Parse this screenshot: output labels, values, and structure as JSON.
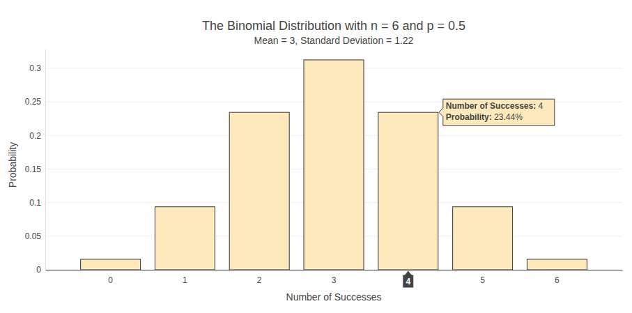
{
  "chart_data": {
    "type": "bar",
    "title": "The Binomial Distribution with n = 6 and p = 0.5",
    "subtitle": "Mean = 3, Standard Deviation = 1.22",
    "x_label": "Number of Successes",
    "y_label": "Probability",
    "categories": [
      "0",
      "1",
      "2",
      "3",
      "4",
      "5",
      "6"
    ],
    "values": [
      0.015625,
      0.09375,
      0.234375,
      0.3125,
      0.234375,
      0.09375,
      0.015625
    ],
    "color": "#fde9bb",
    "ylim": [
      0,
      0.329
    ],
    "yticks": [
      0,
      0.05,
      0.1,
      0.15,
      0.2,
      0.25,
      0.3
    ],
    "grid": true,
    "annotations": [
      {
        "category": "4",
        "value": 0.234375,
        "text": [
          "Number of Successes: 4",
          "Probability: 23.44%"
        ],
        "axis_label": "4"
      }
    ]
  }
}
